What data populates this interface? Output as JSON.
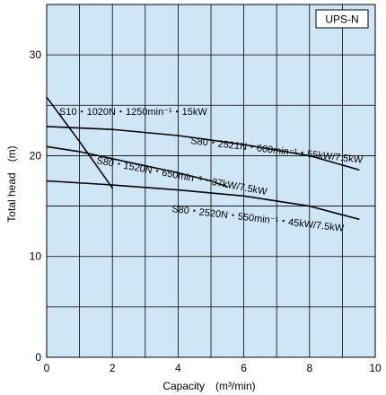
{
  "chart_data": {
    "type": "line",
    "badge": "UPS-N",
    "xlabel": "Capacity　(m³/min)",
    "ylabel": "Total head　(m)",
    "xlim": [
      0,
      10
    ],
    "ylim": [
      0,
      35
    ],
    "x_ticks": [
      "0",
      "2",
      "4",
      "6",
      "8",
      "10"
    ],
    "y_ticks": [
      "0",
      "10",
      "20",
      "30"
    ],
    "grid": true,
    "background": "#cfe6f7",
    "line_color": "#000000",
    "series": [
      {
        "name": "S10・1020N・1250min⁻¹・15kW",
        "x": [
          0,
          1,
          2
        ],
        "y": [
          25.8,
          21.4,
          16.8
        ]
      },
      {
        "name": "S80・2521N・600min⁻¹・55kW/7.5kW",
        "x": [
          0,
          2,
          4,
          6,
          8,
          9.5
        ],
        "y": [
          22.9,
          22.6,
          22.0,
          21.1,
          20.0,
          18.6
        ]
      },
      {
        "name": "S80・1520N・650min⁻¹・37kW/7.5kW",
        "x": [
          0,
          1,
          2,
          3,
          4,
          5,
          5.5
        ],
        "y": [
          20.9,
          20.4,
          19.7,
          19.0,
          18.3,
          17.5,
          16.9
        ]
      },
      {
        "name": "S80・2520N・550min⁻¹・45kW/7.5kW",
        "x": [
          0,
          2,
          4,
          6,
          8,
          9.5
        ],
        "y": [
          17.5,
          17.1,
          16.6,
          16.0,
          15.0,
          13.7
        ]
      }
    ]
  }
}
